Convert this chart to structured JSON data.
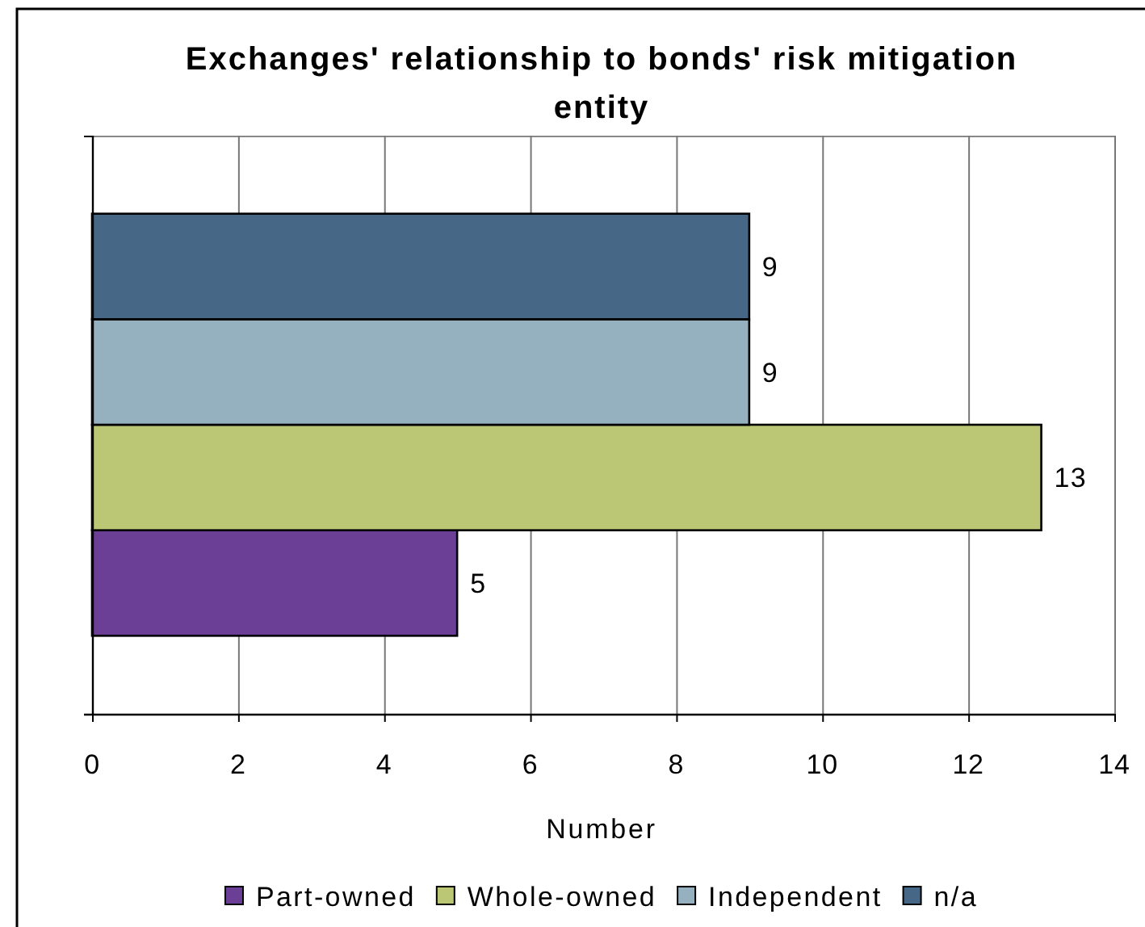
{
  "chart_data": {
    "type": "bar",
    "orientation": "horizontal",
    "title": "Exchanges' relationship to bonds' risk mitigation entity",
    "xlabel": "Number",
    "categories": [
      null
    ],
    "series": [
      {
        "name": "Part-owned",
        "color": "#6b3f95",
        "values": [
          5
        ]
      },
      {
        "name": "Whole-owned",
        "color": "#bcc776",
        "values": [
          13
        ]
      },
      {
        "name": "Independent",
        "color": "#95b0bf",
        "values": [
          9
        ]
      },
      {
        "name": "n/a",
        "color": "#476786",
        "values": [
          9
        ]
      }
    ],
    "xlim": [
      0,
      14
    ],
    "xticks": [
      0,
      2,
      4,
      6,
      8,
      10,
      12,
      14
    ],
    "grid": "x",
    "legend": "bottom",
    "data_labels": true
  }
}
